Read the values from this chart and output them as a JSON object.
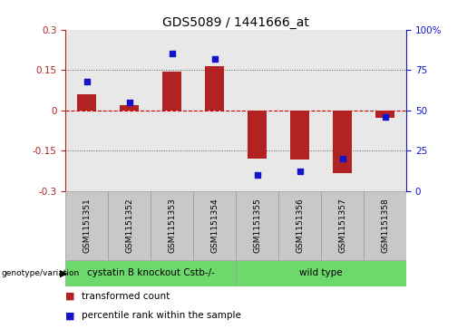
{
  "title": "GDS5089 / 1441666_at",
  "samples": [
    "GSM1151351",
    "GSM1151352",
    "GSM1151353",
    "GSM1151354",
    "GSM1151355",
    "GSM1151356",
    "GSM1151357",
    "GSM1151358"
  ],
  "red_values": [
    0.06,
    0.02,
    0.145,
    0.165,
    -0.18,
    -0.185,
    -0.235,
    -0.03
  ],
  "blue_values_pct": [
    68,
    55,
    85,
    82,
    10,
    12,
    20,
    46
  ],
  "ylim_left": [
    -0.3,
    0.3
  ],
  "ylim_right": [
    0,
    100
  ],
  "yticks_left": [
    -0.3,
    -0.15,
    0.0,
    0.15,
    0.3
  ],
  "yticks_right": [
    0,
    25,
    50,
    75,
    100
  ],
  "ytick_labels_left": [
    "-0.3",
    "-0.15",
    "0",
    "0.15",
    "0.3"
  ],
  "ytick_labels_right": [
    "0",
    "25",
    "50",
    "75",
    "100%"
  ],
  "hlines_dotted": [
    0.15,
    -0.15
  ],
  "zero_line": 0.0,
  "group1_indices": [
    0,
    1,
    2,
    3
  ],
  "group2_indices": [
    4,
    5,
    6,
    7
  ],
  "group1_label": "cystatin B knockout Cstb-/-",
  "group2_label": "wild type",
  "group_color": "#6DD96D",
  "sample_box_color": "#C8C8C8",
  "bar_color": "#B22222",
  "dot_color": "#1414CC",
  "zero_line_color": "#CC0000",
  "dotted_color": "#555555",
  "bg_color": "#E8E8E8",
  "bar_width": 0.45,
  "annotation_label1": "transformed count",
  "annotation_label2": "percentile rank within the sample",
  "genotype_label": "genotype/variation",
  "title_fontsize": 10,
  "tick_fontsize": 7.5,
  "sample_fontsize": 6.5,
  "legend_fontsize": 7.5,
  "group_fontsize": 7.5
}
